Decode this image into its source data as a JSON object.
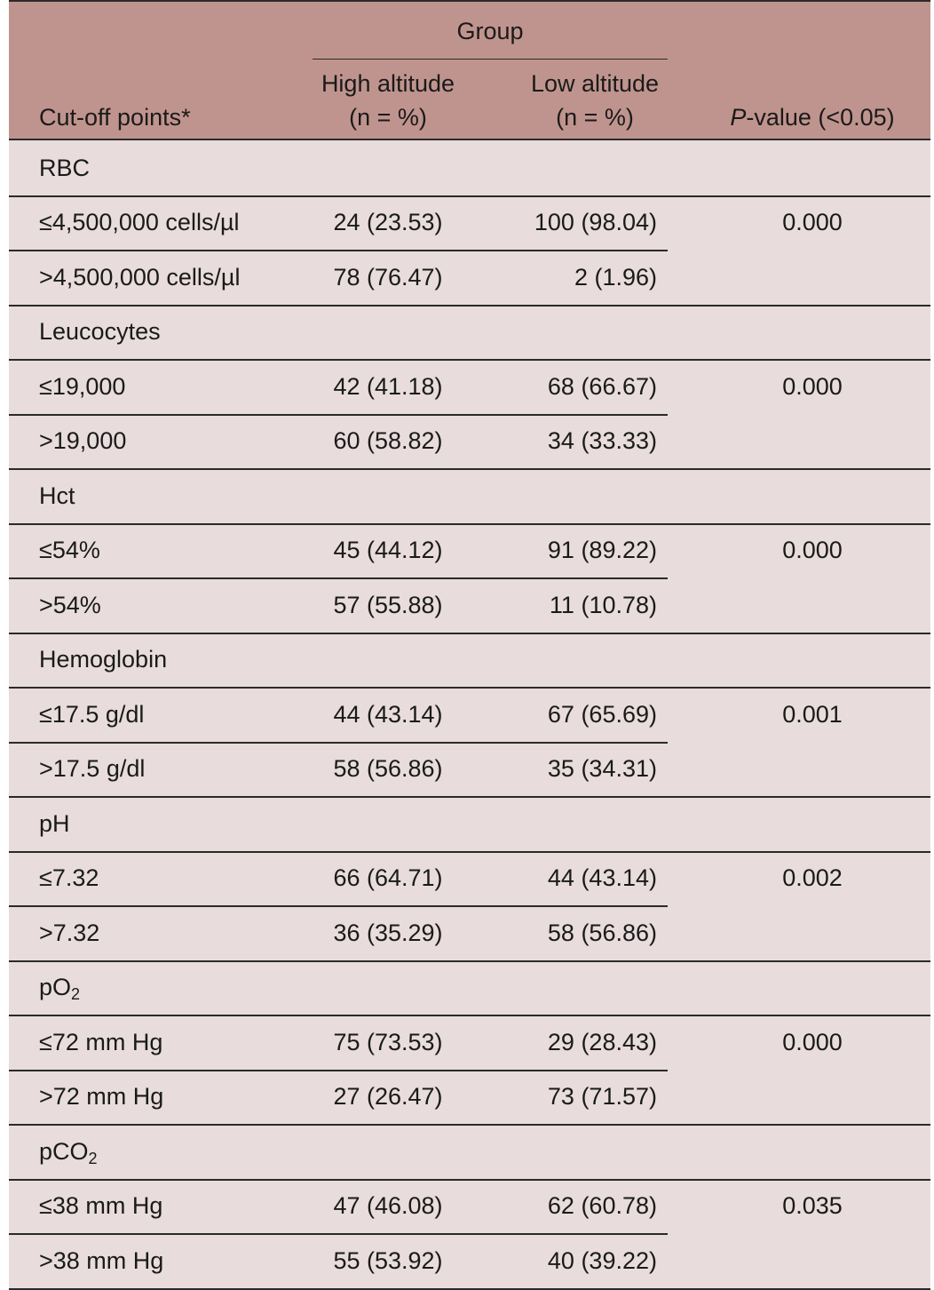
{
  "header": {
    "group": "Group",
    "cutoff": "Cut-off points*",
    "high_line1": "High altitude",
    "high_line2": "(n = %)",
    "low_line1": "Low altitude",
    "low_line2": "(n = %)",
    "pvalue_italic": "P",
    "pvalue_rest": "-value (<0.05)"
  },
  "sections": [
    {
      "name": "RBC",
      "pvalue": "0.000",
      "rows": [
        {
          "label": "≤4,500,000 cells/µl",
          "high": "24 (23.53)",
          "low": "100 (98.04)"
        },
        {
          "label": ">4,500,000 cells/µl",
          "high": "78 (76.47)",
          "low": "2 (1.96)"
        }
      ]
    },
    {
      "name": "Leucocytes",
      "pvalue": "0.000",
      "rows": [
        {
          "label": "≤19,000",
          "high": "42 (41.18)",
          "low": "68 (66.67)"
        },
        {
          "label": ">19,000",
          "high": "60 (58.82)",
          "low": "34 (33.33)"
        }
      ]
    },
    {
      "name": "Hct",
      "pvalue": "0.000",
      "rows": [
        {
          "label": "≤54%",
          "high": "45 (44.12)",
          "low": "91 (89.22)"
        },
        {
          "label": ">54%",
          "high": "57 (55.88)",
          "low": "11 (10.78)"
        }
      ]
    },
    {
      "name": "Hemoglobin",
      "pvalue": "0.001",
      "rows": [
        {
          "label": "≤17.5 g/dl",
          "high": "44 (43.14)",
          "low": "67 (65.69)"
        },
        {
          "label": ">17.5 g/dl",
          "high": "58 (56.86)",
          "low": "35 (34.31)"
        }
      ]
    },
    {
      "name": "pH",
      "pvalue": "0.002",
      "rows": [
        {
          "label": "≤7.32",
          "high": "66 (64.71)",
          "low": "44 (43.14)"
        },
        {
          "label": ">7.32",
          "high": "36 (35.29)",
          "low": "58 (56.86)"
        }
      ]
    },
    {
      "name_main": "pO",
      "name_sub": "2",
      "pvalue": "0.000",
      "rows": [
        {
          "label": "≤72 mm Hg",
          "high": "75 (73.53)",
          "low": "29 (28.43)"
        },
        {
          "label": ">72 mm Hg",
          "high": "27 (26.47)",
          "low": "73 (71.57)"
        }
      ]
    },
    {
      "name_main": "pCO",
      "name_sub": "2",
      "pvalue": "0.035",
      "rows": [
        {
          "label": "≤38 mm Hg",
          "high": "47 (46.08)",
          "low": "62 (60.78)"
        },
        {
          "label": ">38 mm Hg",
          "high": "55 (53.92)",
          "low": "40 (39.22)"
        }
      ]
    }
  ]
}
